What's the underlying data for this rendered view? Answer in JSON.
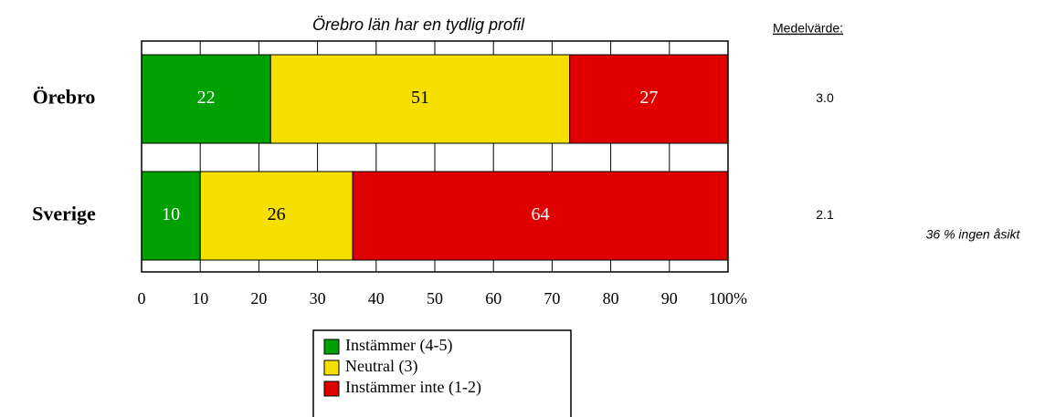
{
  "chart_data": {
    "type": "stacked-barh",
    "title": "Örebro län har en tydlig profil",
    "categories": [
      "Örebro",
      "Sverige"
    ],
    "series": [
      {
        "name": "Instämmer (4-5)",
        "color": "#00a000",
        "values": [
          22,
          10
        ]
      },
      {
        "name": "Neutral (3)",
        "color": "#f5e000",
        "values": [
          51,
          26
        ]
      },
      {
        "name": "Instämmer inte (1-2)",
        "color": "#e00000",
        "values": [
          27,
          64
        ]
      }
    ],
    "xlim": [
      0,
      100
    ],
    "xticks": [
      0,
      10,
      20,
      30,
      40,
      50,
      60,
      70,
      80,
      90,
      {
        "value": 100,
        "label": "100%"
      }
    ],
    "grid": true,
    "mean_title": "Medelvärde:",
    "means": [
      "3.0",
      "2.1"
    ],
    "annotation": "36 % ingen åsikt"
  }
}
